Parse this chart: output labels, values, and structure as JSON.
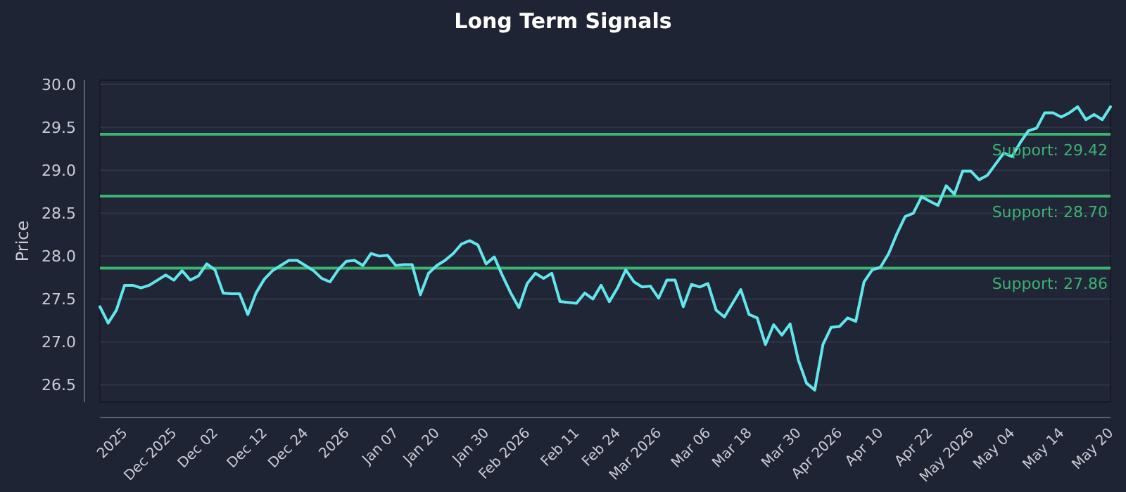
{
  "chart_data": {
    "type": "line",
    "title": "Long Term Signals",
    "ylabel": "Price",
    "categories": [
      null,
      null,
      null,
      "2025",
      null,
      null,
      null,
      null,
      null,
      "Dec 2025",
      null,
      null,
      null,
      null,
      "Dec 02",
      null,
      null,
      null,
      null,
      null,
      "Dec 12",
      null,
      null,
      null,
      null,
      "Dec 24",
      null,
      null,
      null,
      null,
      "2026",
      null,
      null,
      null,
      null,
      null,
      "Jan 07",
      null,
      null,
      null,
      null,
      "Jan 20",
      null,
      null,
      null,
      null,
      null,
      "Jan 30",
      null,
      null,
      null,
      null,
      "Feb 2026",
      null,
      null,
      null,
      null,
      null,
      "Feb 11",
      null,
      null,
      null,
      null,
      "Feb 24",
      null,
      null,
      null,
      null,
      "Mar 2026",
      null,
      null,
      null,
      null,
      null,
      "Mar 06",
      null,
      null,
      null,
      null,
      "Mar 18",
      null,
      null,
      null,
      null,
      null,
      "Mar 30",
      null,
      null,
      null,
      null,
      "Apr 2026",
      null,
      null,
      null,
      null,
      "Apr 10",
      null,
      null,
      null,
      null,
      null,
      "Apr 22",
      null,
      null,
      null,
      null,
      "May 2026",
      null,
      null,
      null,
      null,
      "May 04",
      null,
      null,
      null,
      null,
      null,
      "May 14",
      null,
      null,
      null,
      null,
      null,
      "May 20"
    ],
    "series": [
      {
        "color": "#62e6ec",
        "values": [
          27.41,
          27.22,
          27.37,
          27.66,
          27.66,
          27.63,
          27.66,
          27.72,
          27.78,
          27.72,
          27.83,
          27.72,
          27.77,
          27.91,
          27.84,
          27.57,
          27.56,
          27.56,
          27.32,
          27.57,
          27.73,
          27.83,
          27.89,
          27.95,
          27.95,
          27.89,
          27.83,
          27.74,
          27.7,
          27.84,
          27.94,
          27.95,
          27.89,
          28.03,
          28.0,
          28.01,
          27.89,
          27.9,
          27.9,
          27.55,
          27.8,
          27.89,
          27.95,
          28.03,
          28.14,
          28.18,
          28.13,
          27.91,
          27.99,
          27.77,
          27.57,
          27.4,
          27.68,
          27.8,
          27.74,
          27.8,
          27.47,
          27.46,
          27.45,
          27.57,
          27.5,
          27.66,
          27.47,
          27.63,
          27.84,
          27.7,
          27.64,
          27.65,
          27.51,
          27.72,
          27.72,
          27.41,
          27.67,
          27.64,
          27.68,
          27.37,
          27.29,
          27.45,
          27.61,
          27.32,
          27.28,
          26.97,
          27.2,
          27.08,
          27.21,
          26.79,
          26.52,
          26.44,
          26.97,
          27.17,
          27.18,
          27.28,
          27.24,
          27.7,
          27.84,
          27.87,
          28.03,
          28.26,
          28.46,
          28.5,
          28.69,
          28.64,
          28.59,
          28.82,
          28.72,
          28.99,
          28.99,
          28.89,
          28.94,
          29.07,
          29.2,
          29.16,
          29.32,
          29.46,
          29.49,
          29.67,
          29.67,
          29.62,
          29.67,
          29.74,
          29.59,
          29.65,
          29.59,
          29.74
        ]
      }
    ],
    "ylim": [
      26.3,
      30.05
    ],
    "yticks": [
      26.5,
      {
        "value": 27,
        "label": "27.0"
      },
      27.5,
      {
        "value": 28,
        "label": "28.0"
      },
      28.5,
      {
        "value": 29,
        "label": "29.0"
      },
      29.5,
      {
        "value": 30,
        "label": "30.0"
      }
    ],
    "grid": "y",
    "ref_lines": [
      {
        "axis": "y",
        "value": 29.42,
        "label": "Support: 29.42",
        "color": "#3cb371"
      },
      {
        "axis": "y",
        "value": 28.7,
        "label": "Support: 28.70",
        "color": "#3cb371"
      },
      {
        "axis": "y",
        "value": 27.86,
        "label": "Support: 27.86",
        "color": "#3cb371"
      }
    ]
  }
}
